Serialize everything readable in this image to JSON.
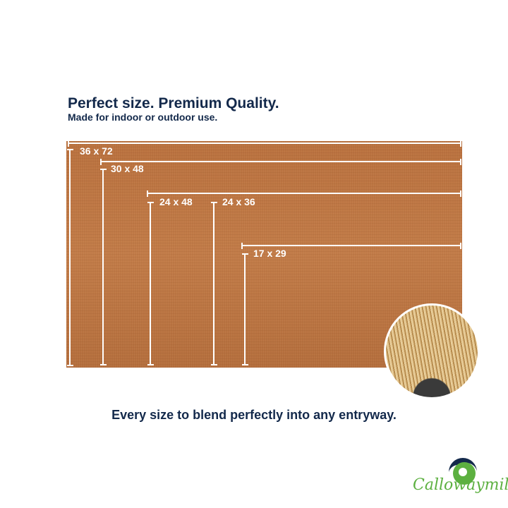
{
  "header": {
    "title": "Perfect size. Premium Quality.",
    "subtitle": "Made for indoor or outdoor use."
  },
  "sizes": [
    {
      "label": "36 x 72"
    },
    {
      "label": "30 x 48"
    },
    {
      "label": "24 x 48"
    },
    {
      "label": "24 x 36"
    },
    {
      "label": "17 x 29"
    }
  ],
  "tagline": "Every size to blend perfectly into any entryway.",
  "brand": {
    "name": "Callowaymills",
    "colors": {
      "navy": "#13294b",
      "green": "#5cb040"
    }
  },
  "colors": {
    "mat": "#c17b48",
    "text": "#13294b"
  }
}
